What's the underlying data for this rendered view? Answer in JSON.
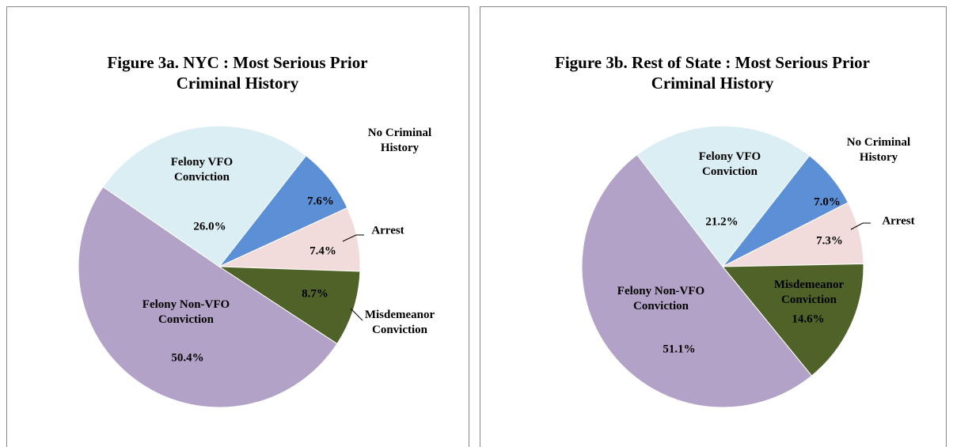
{
  "chart_data": [
    {
      "type": "pie",
      "title": "Figure 3a. NYC : Most Serious Prior Criminal History",
      "categories": [
        "No Criminal History",
        "Arrest",
        "Misdemeanor Conviction",
        "Felony Non-VFO Conviction",
        "Felony VFO Conviction"
      ],
      "values": [
        7.6,
        7.4,
        8.7,
        50.4,
        26.0
      ],
      "value_labels": [
        "7.6%",
        "7.4%",
        "8.7%",
        "50.4%",
        "26.0%"
      ],
      "colors": [
        "#5b8fd6",
        "#f2dcdb",
        "#4f6228",
        "#b3a2c7",
        "#dbeef4"
      ]
    },
    {
      "type": "pie",
      "title": "Figure 3b. Rest of State : Most Serious Prior Criminal History",
      "categories": [
        "No Criminal History",
        "Arrest",
        "Misdemeanor Conviction",
        "Felony Non-VFO Conviction",
        "Felony VFO Conviction"
      ],
      "values": [
        7.0,
        7.3,
        14.6,
        51.1,
        21.2
      ],
      "value_labels": [
        "7.0%",
        "7.3%",
        "14.6%",
        "51.1%",
        "21.2%"
      ],
      "colors": [
        "#5b8fd6",
        "#f2dcdb",
        "#4f6228",
        "#b3a2c7",
        "#dbeef4"
      ]
    }
  ]
}
